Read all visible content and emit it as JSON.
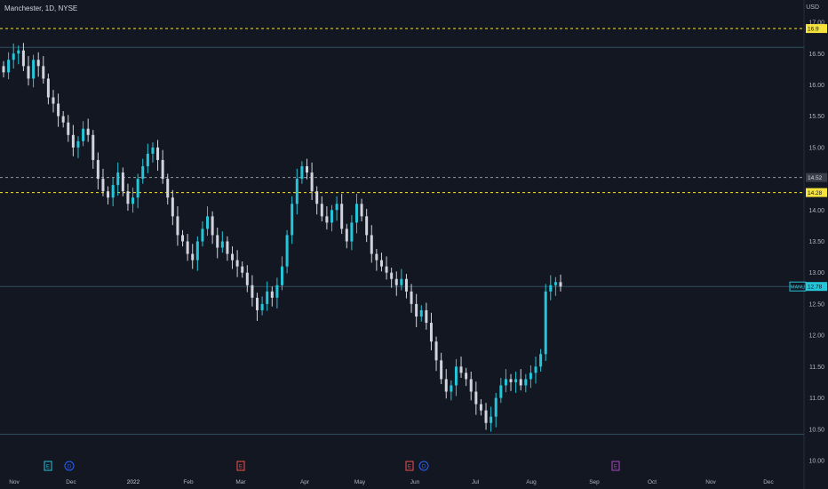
{
  "header": {
    "title": "Manchester, 1D, NYSE",
    "currency": "USD"
  },
  "colors": {
    "background": "#131722",
    "up": "#26c6da",
    "down": "#d1d4dc",
    "dashed_level": "#f5e33b",
    "price_line": "#26c6da",
    "grid": "#2a2e39"
  },
  "chart_data": {
    "type": "candlestick",
    "title": "Manchester, 1D, NYSE",
    "ylabel": "USD",
    "ylim": [
      9.9,
      17.1
    ],
    "y_ticks": [
      "17.00",
      "16.50",
      "16.00",
      "15.50",
      "15.00",
      "14.50",
      "14.00",
      "13.50",
      "13.00",
      "12.50",
      "12.00",
      "11.50",
      "11.00",
      "10.50",
      "10.00"
    ],
    "x_ticks": [
      "Nov",
      "Dec",
      "2022",
      "Feb",
      "Mar",
      "Apr",
      "May",
      "Jun",
      "Jul",
      "Aug",
      "Sep",
      "Oct",
      "Nov",
      "Dec"
    ],
    "levels": [
      {
        "value": 16.9,
        "label": "16.9",
        "style": "dashed-yellow"
      },
      {
        "value": 14.52,
        "label": "14.52",
        "style": "dashed-gray"
      },
      {
        "value": 14.28,
        "label": "14.28",
        "style": "dashed-yellow"
      }
    ],
    "horizontal_lines": [
      16.6,
      12.78,
      10.42
    ],
    "last_price": {
      "symbol": "MANU",
      "value": 12.78,
      "label": "12.78"
    },
    "event_markers": [
      {
        "letter": "E",
        "date": "Nov",
        "type": "earnings"
      },
      {
        "letter": "D",
        "date": "Dec",
        "type": "dividend"
      },
      {
        "letter": "E",
        "date": "Mar",
        "type": "earnings"
      },
      {
        "letter": "E",
        "date": "Jun",
        "type": "earnings"
      },
      {
        "letter": "D",
        "date": "Jun",
        "type": "dividend"
      },
      {
        "letter": "E",
        "date": "Aug",
        "type": "earnings"
      }
    ],
    "closes": [
      16.2,
      16.4,
      16.5,
      16.55,
      16.3,
      16.1,
      16.4,
      16.3,
      16.1,
      15.8,
      15.7,
      15.5,
      15.4,
      15.2,
      15.0,
      15.1,
      15.3,
      15.2,
      14.8,
      14.5,
      14.3,
      14.2,
      14.4,
      14.6,
      14.3,
      14.1,
      14.2,
      14.5,
      14.7,
      14.9,
      15.0,
      14.8,
      14.5,
      14.2,
      13.9,
      13.6,
      13.5,
      13.3,
      13.2,
      13.5,
      13.7,
      13.9,
      13.6,
      13.4,
      13.5,
      13.3,
      13.2,
      13.1,
      13.0,
      12.8,
      12.6,
      12.4,
      12.5,
      12.7,
      12.6,
      12.8,
      13.1,
      13.6,
      14.1,
      14.5,
      14.7,
      14.6,
      14.3,
      14.1,
      13.9,
      13.8,
      14.0,
      14.1,
      13.7,
      13.5,
      13.8,
      14.1,
      13.9,
      13.6,
      13.3,
      13.2,
      13.1,
      13.0,
      12.9,
      12.8,
      12.9,
      12.7,
      12.5,
      12.3,
      12.4,
      12.2,
      11.9,
      11.6,
      11.3,
      11.1,
      11.2,
      11.5,
      11.4,
      11.3,
      11.1,
      10.9,
      10.8,
      10.6,
      10.7,
      11.0,
      11.2,
      11.3,
      11.25,
      11.3,
      11.2,
      11.3,
      11.4,
      11.5,
      11.7,
      12.7,
      12.8,
      12.85,
      12.78
    ],
    "dates": {
      "start": "2021-11-01",
      "end": "2022-08-16"
    }
  }
}
